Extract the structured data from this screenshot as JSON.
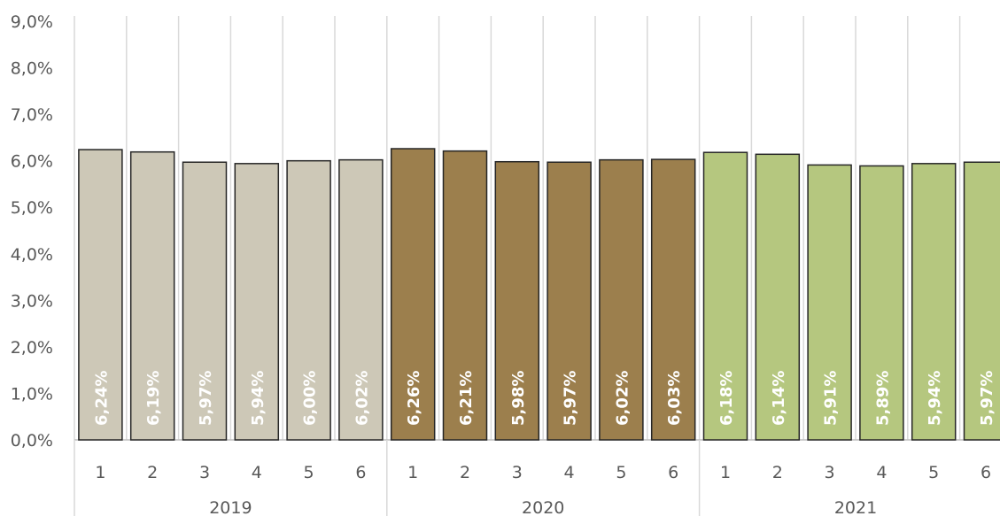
{
  "chart_data": {
    "type": "bar",
    "title": "",
    "xlabel": "",
    "ylabel": "",
    "ylim": [
      0,
      9
    ],
    "y_ticks": [
      "0,0%",
      "1,0%",
      "2,0%",
      "3,0%",
      "4,0%",
      "5,0%",
      "6,0%",
      "7,0%",
      "8,0%",
      "9,0%"
    ],
    "grid": "vertical separators between categories",
    "groups": [
      {
        "label": "2019",
        "color": "#cdc8b7",
        "categories": [
          "1",
          "2",
          "3",
          "4",
          "5",
          "6"
        ],
        "values": [
          6.24,
          6.19,
          5.97,
          5.94,
          6.0,
          6.02
        ],
        "labels": [
          "6,24%",
          "6,19%",
          "5,97%",
          "5,94%",
          "6,00%",
          "6,02%"
        ]
      },
      {
        "label": "2020",
        "color": "#9c7f4d",
        "categories": [
          "1",
          "2",
          "3",
          "4",
          "5",
          "6"
        ],
        "values": [
          6.26,
          6.21,
          5.98,
          5.97,
          6.02,
          6.03
        ],
        "labels": [
          "6,26%",
          "6,21%",
          "5,98%",
          "5,97%",
          "6,02%",
          "6,03%"
        ]
      },
      {
        "label": "2021",
        "color": "#b5c77f",
        "categories": [
          "1",
          "2",
          "3",
          "4",
          "5",
          "6"
        ],
        "values": [
          6.18,
          6.14,
          5.91,
          5.89,
          5.94,
          5.97
        ],
        "labels": [
          "6,18%",
          "6,14%",
          "5,91%",
          "5,89%",
          "5,94%",
          "5,97%"
        ]
      }
    ]
  }
}
